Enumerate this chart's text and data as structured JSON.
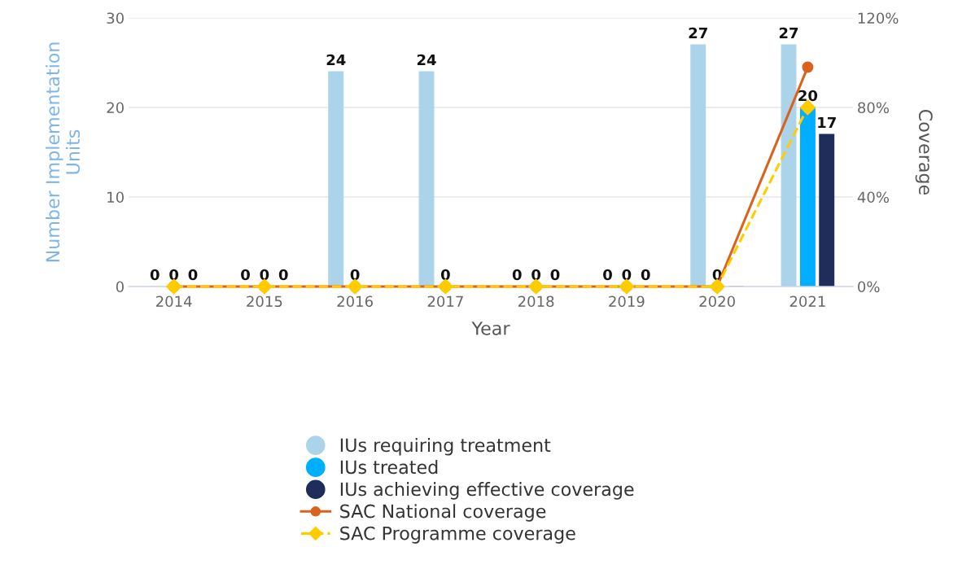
{
  "chart_data": {
    "type": "bar",
    "xlabel": "Year",
    "ylabel": "Number Implementation\nUnits",
    "y2label": "Coverage",
    "categories": [
      "2014",
      "2015",
      "2016",
      "2017",
      "2018",
      "2019",
      "2020",
      "2021"
    ],
    "series": [
      {
        "name": "IUs requiring treatment",
        "color": "#abd4ea",
        "values": [
          0,
          0,
          24,
          24,
          0,
          0,
          27,
          27
        ],
        "value_labels": [
          "0",
          "0",
          "24",
          "24",
          "0",
          "0",
          "27",
          "27"
        ]
      },
      {
        "name": "IUs treated",
        "color": "#00aeff",
        "values": [
          0,
          0,
          0,
          0,
          0,
          0,
          0,
          20
        ],
        "value_labels": [
          "0",
          "0",
          "0",
          "0",
          "0",
          "0",
          "0",
          "20"
        ]
      },
      {
        "name": "IUs achieving effective coverage",
        "color": "#1e2d5a",
        "values": [
          0,
          0,
          0,
          0,
          0,
          0,
          0,
          17
        ],
        "value_labels": [
          "0",
          "0",
          null,
          null,
          "0",
          "0",
          null,
          "17"
        ]
      },
      {
        "name": "SAC National coverage",
        "type": "line",
        "axis": "y2",
        "color": "#d9621e",
        "marker": "circle",
        "line_style": "solid",
        "values": [
          0,
          0,
          0,
          0,
          0,
          0,
          0,
          98
        ]
      },
      {
        "name": "SAC Programme coverage",
        "type": "line",
        "axis": "y2",
        "color": "#ffcc00",
        "marker": "diamond",
        "line_style": "dashed",
        "values": [
          0,
          0,
          0,
          0,
          0,
          0,
          0,
          80
        ]
      }
    ],
    "ylim": [
      0,
      30
    ],
    "yticks": [
      0,
      10,
      20,
      30
    ],
    "y2lim": [
      0,
      120
    ],
    "y2ticks": [
      {
        "value": 0,
        "label": "0%"
      },
      {
        "value": 40,
        "label": "40%"
      },
      {
        "value": 80,
        "label": "80%"
      },
      {
        "value": 120,
        "label": "120%"
      }
    ],
    "grid": "y",
    "legend": "bottom"
  }
}
